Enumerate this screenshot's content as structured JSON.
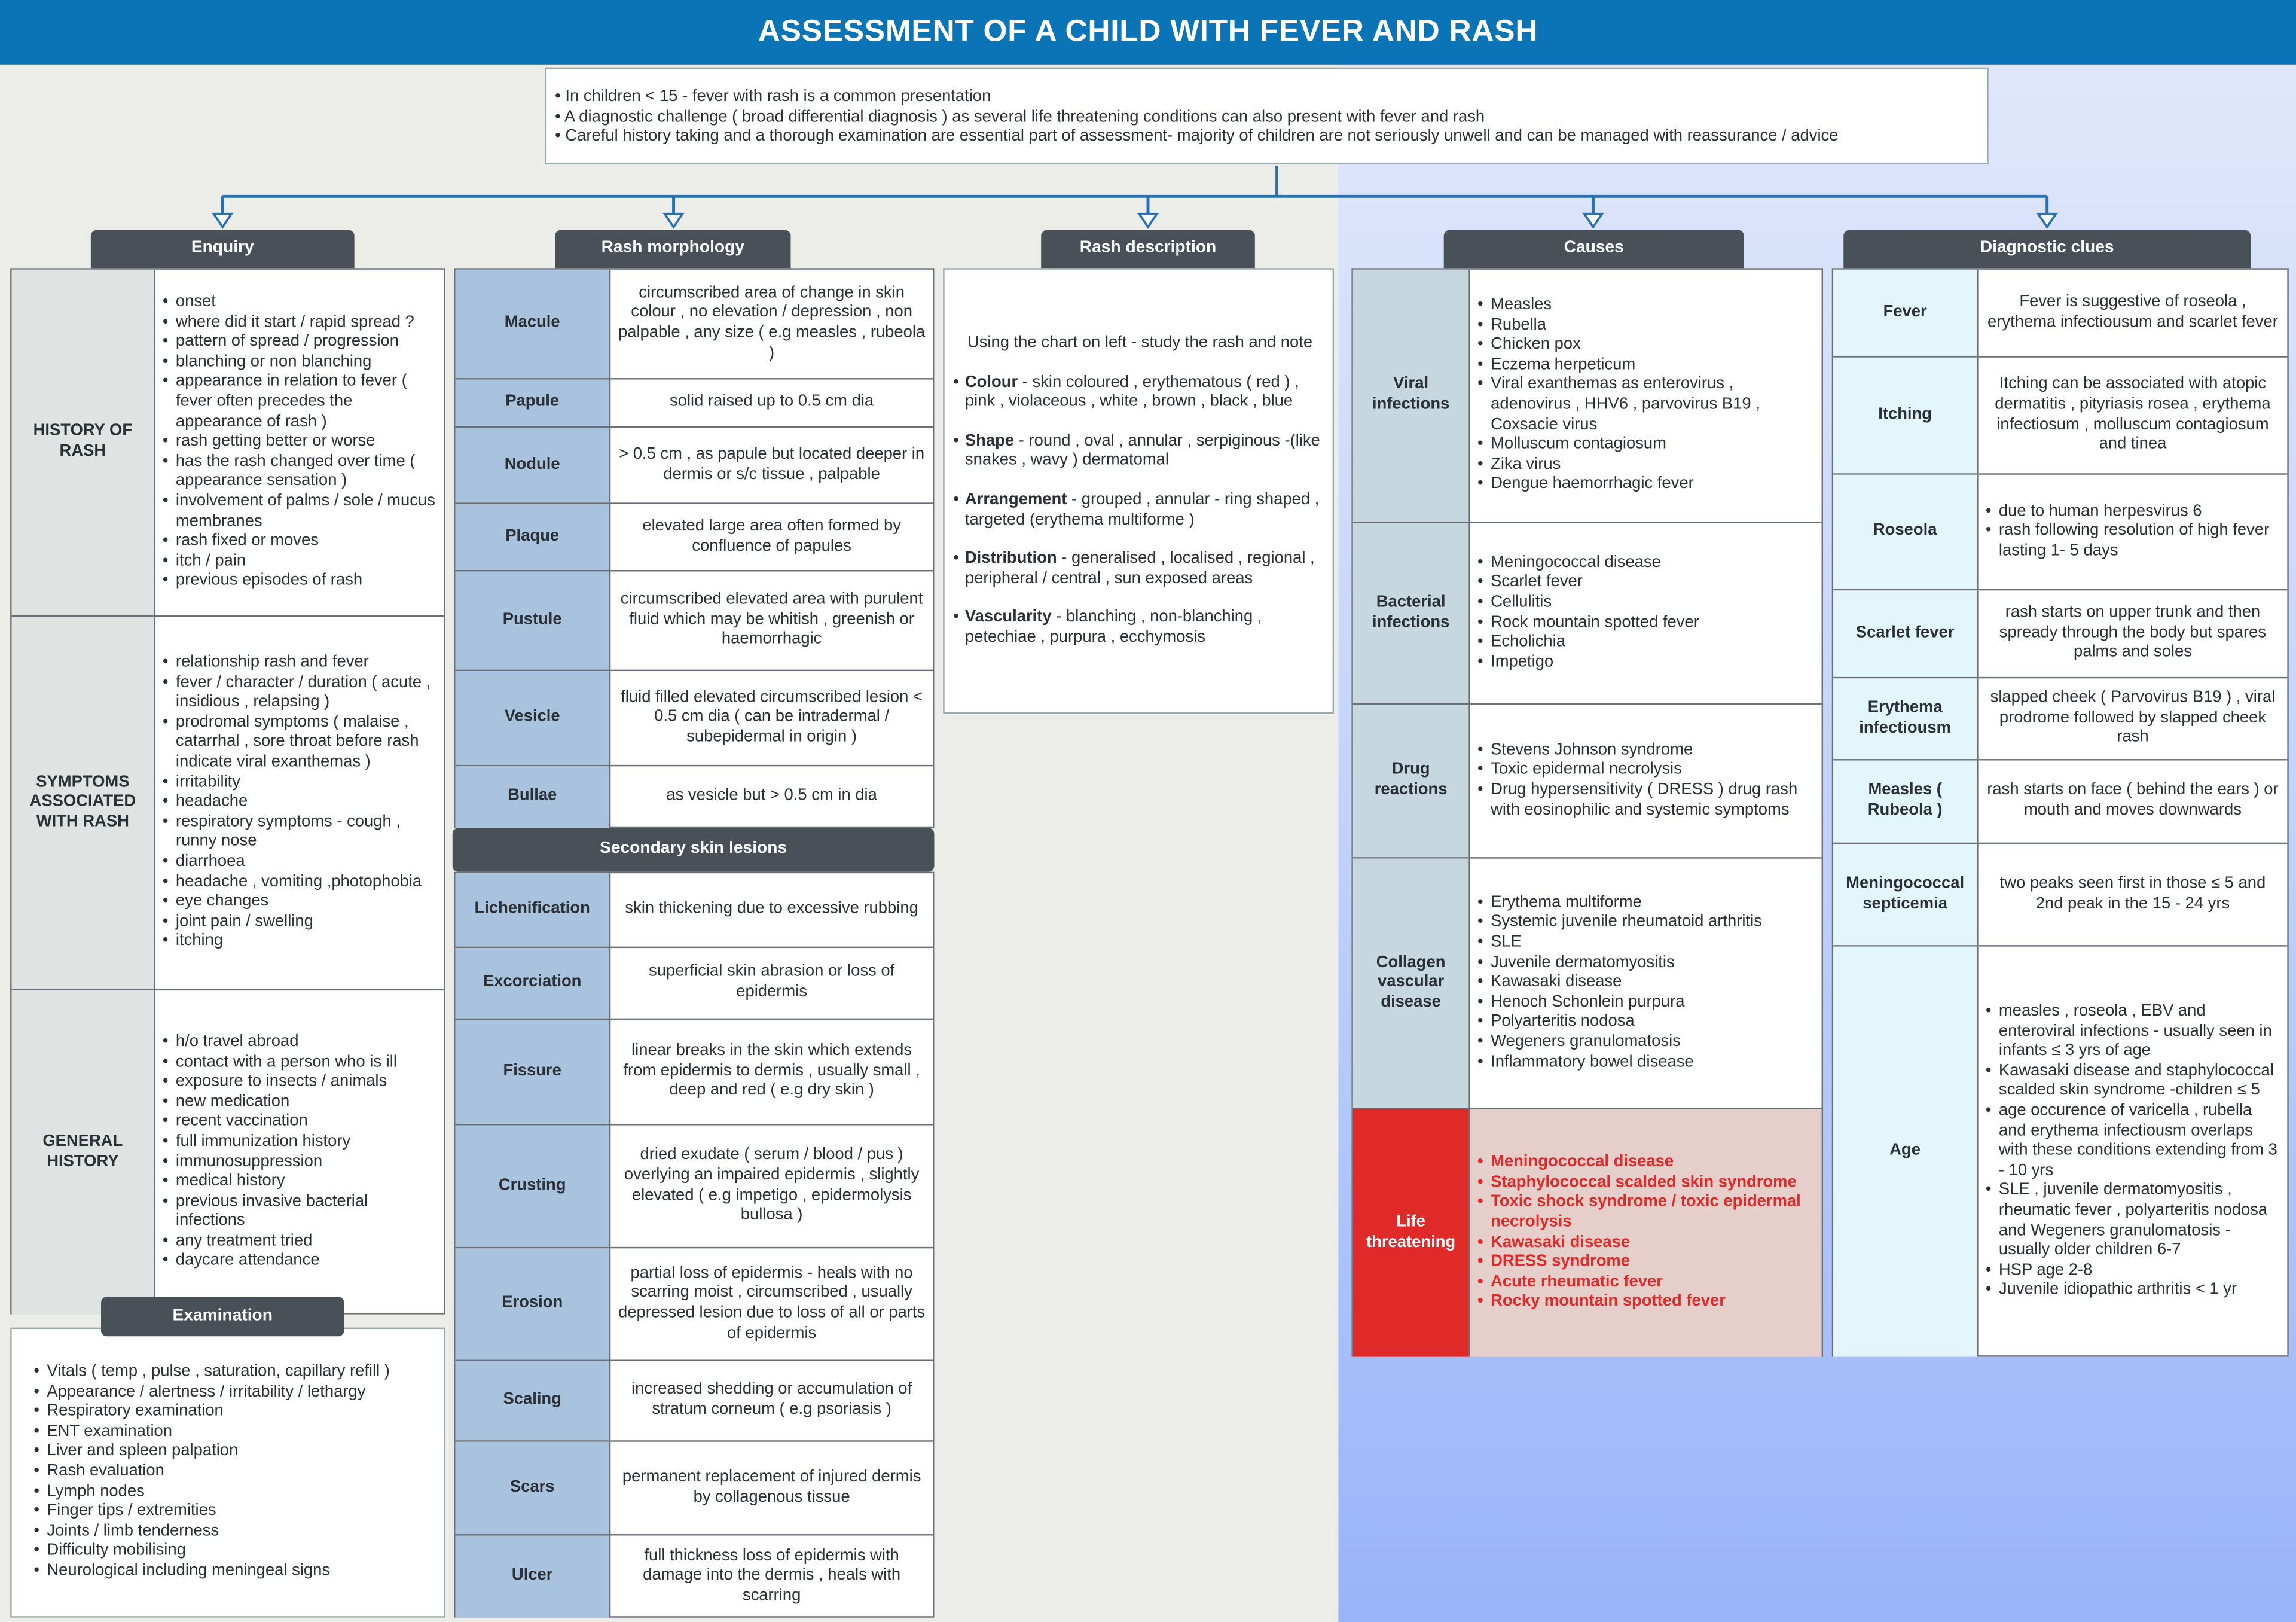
{
  "title": "ASSESSMENT OF A CHILD WITH FEVER AND RASH",
  "colors": {
    "title_bar": "#0a74b6",
    "header": "#4a5058",
    "life_threatening": "#e02a2a",
    "connector": "#2a6fb0"
  },
  "intro": [
    "In children < 15 - fever with rash is a common presentation",
    "A diagnostic challenge ( broad differential diagnosis ) as several life threatening conditions can also present with fever and rash",
    "Careful history taking and a thorough examination are essential part of assessment- majority of children are not seriously unwell and can be managed with reassurance / advice"
  ],
  "enquiry": {
    "header": "Enquiry",
    "rows": [
      {
        "label": "HISTORY OF RASH",
        "items": [
          "onset",
          "where did it start  / rapid spread ?",
          "pattern of spread / progression",
          "blanching or non blanching",
          "appearance in relation to fever ( fever often precedes the appearance of rash )",
          "rash getting better or worse",
          "has the rash changed over time ( appearance sensation )",
          "involvement of palms / sole / mucus membranes",
          "rash fixed or moves",
          "itch / pain",
          "previous episodes of rash"
        ]
      },
      {
        "label": "SYMPTOMS ASSOCIATED WITH RASH",
        "items": [
          "relationship rash and fever",
          "fever / character / duration ( acute , insidious , relapsing )",
          "prodromal symptoms ( malaise , catarrhal , sore throat before rash indicate viral exanthemas )",
          "irritability",
          "headache",
          "respiratory symptoms - cough , runny nose",
          "diarrhoea",
          "headache , vomiting ,photophobia",
          "eye changes",
          "joint pain / swelling",
          "itching"
        ]
      },
      {
        "label": "GENERAL HISTORY",
        "items": [
          "h/o travel abroad",
          "contact with a person who is ill",
          "exposure to insects / animals",
          "new medication",
          "recent vaccination",
          "full immunization history",
          "immunosuppression",
          "medical history",
          "previous invasive bacterial infections",
          "any treatment tried",
          "daycare attendance"
        ]
      }
    ]
  },
  "examination": {
    "header": "Examination",
    "items": [
      "Vitals ( temp , pulse , saturation, capillary refill )",
      "Appearance / alertness / irritability / lethargy",
      "Respiratory examination",
      "ENT examination",
      "Liver and spleen palpation",
      "Rash evaluation",
      "Lymph nodes",
      "Finger tips / extremities",
      "Joints / limb tenderness",
      "Difficulty mobilising",
      "Neurological including meningeal signs"
    ]
  },
  "rash_morphology": {
    "header": "Rash morphology",
    "rows": [
      {
        "label": "Macule",
        "text": "circumscribed area of change in skin colour , no elevation / depression , non palpable , any size ( e.g measles , rubeola )"
      },
      {
        "label": "Papule",
        "text": "solid raised up to 0.5 cm dia"
      },
      {
        "label": "Nodule",
        "text": "> 0.5 cm , as papule but located deeper in dermis or s/c tissue , palpable"
      },
      {
        "label": "Plaque",
        "text": "elevated large area often formed by confluence of papules"
      },
      {
        "label": "Pustule",
        "text": "circumscribed elevated area with purulent fluid which may be whitish , greenish or haemorrhagic"
      },
      {
        "label": "Vesicle",
        "text": "fluid filled elevated circumscribed lesion < 0.5 cm dia ( can be intradermal / subepidermal in origin )"
      },
      {
        "label": "Bullae",
        "text": "as vesicle but > 0.5 cm in dia"
      }
    ]
  },
  "secondary_lesions": {
    "header": "Secondary skin lesions",
    "rows": [
      {
        "label": "Lichenification",
        "text": "skin thickening due to excessive rubbing"
      },
      {
        "label": "Excorciation",
        "text": "superficial skin abrasion or loss of epidermis"
      },
      {
        "label": "Fissure",
        "text": "linear breaks in the skin which extends from epidermis to dermis , usually small , deep and red ( e.g dry skin )"
      },
      {
        "label": "Crusting",
        "text": "dried exudate ( serum / blood / pus ) overlying an impaired epidermis , slightly elevated ( e.g impetigo , epidermolysis bullosa )"
      },
      {
        "label": "Erosion",
        "text": "partial loss of epidermis  - heals with no scarring moist , circumscribed , usually depressed lesion due to loss of all or parts of epidermis"
      },
      {
        "label": "Scaling",
        "text": "increased shedding or accumulation of stratum corneum ( e.g psoriasis )"
      },
      {
        "label": "Scars",
        "text": "permanent replacement of injured dermis by collagenous tissue"
      },
      {
        "label": "Ulcer",
        "text": "full thickness loss of epidermis with damage into the dermis , heals with scarring"
      }
    ]
  },
  "rash_description": {
    "header": "Rash description",
    "intro": "Using the chart on left - study the rash and note",
    "items": [
      {
        "term": "Colour",
        "text": " - skin coloured , erythematous ( red ) , pink , violaceous , white , brown , black  , blue"
      },
      {
        "term": "Shape",
        "text": " - round , oval , annular , serpiginous -(like snakes , wavy ) dermatomal"
      },
      {
        "term": "Arrangement",
        "text": " - grouped , annular - ring shaped , targeted (erythema multiforme )"
      },
      {
        "term": "Distribution",
        "text": " - generalised , localised , regional , peripheral / central , sun exposed areas"
      },
      {
        "term": "Vascularity",
        "text": " - blanching , non-blanching , petechiae , purpura , ecchymosis"
      }
    ]
  },
  "causes": {
    "header": "Causes",
    "rows": [
      {
        "label": "Viral infections",
        "items": [
          "Measles",
          "Rubella",
          "Chicken pox",
          "Eczema herpeticum",
          "Viral exanthemas as enterovirus , adenovirus , HHV6 , parvovirus B19 , Coxsacie virus",
          "Molluscum contagiosum",
          "Zika virus",
          "Dengue haemorrhagic fever"
        ]
      },
      {
        "label": "Bacterial infections",
        "items": [
          "Meningococcal disease",
          "Scarlet fever",
          "Cellulitis",
          "Rock mountain spotted fever",
          "Echolichia",
          "Impetigo"
        ]
      },
      {
        "label": "Drug reactions",
        "items": [
          "Stevens Johnson syndrome",
          "Toxic epidermal  necrolysis",
          "Drug hypersensitivity ( DRESS ) drug rash with eosinophilic and systemic symptoms"
        ]
      },
      {
        "label": "Collagen vascular disease",
        "items": [
          "Erythema multiforme",
          "Systemic juvenile rheumatoid arthritis",
          "SLE",
          "Juvenile dermatomyositis",
          "Kawasaki disease",
          "Henoch Schonlein purpura",
          "Polyarteritis nodosa",
          "Wegeners granulomatosis",
          "Inflammatory bowel disease"
        ]
      },
      {
        "label": "Life threatening",
        "life": true,
        "items": [
          "Meningococcal disease",
          "Staphylococcal scalded skin syndrome",
          "Toxic shock syndrome / toxic epidermal necrolysis",
          "Kawasaki disease",
          "DRESS syndrome",
          "Acute rheumatic fever",
          "Rocky mountain spotted fever"
        ]
      }
    ]
  },
  "diagnostic_clues": {
    "header": "Diagnostic clues",
    "rows": [
      {
        "label": "Fever",
        "text": "Fever is suggestive of roseola , erythema infectiousum and scarlet fever"
      },
      {
        "label": "Itching",
        "text": "Itching can be associated with atopic dermatitis , pityriasis rosea , erythema infectiosum , molluscum contagiosum and tinea"
      },
      {
        "label": "Roseola",
        "items": [
          "due to human herpesvirus 6",
          "rash following resolution of high fever lasting 1- 5 days"
        ]
      },
      {
        "label": "Scarlet fever",
        "text": "rash starts on upper trunk and then spready through the body but spares palms and soles"
      },
      {
        "label": "Erythema infectiousm",
        "text": "slapped cheek ( Parvovirus B19 ) , viral prodrome followed by slapped cheek rash"
      },
      {
        "label": "Measles ( Rubeola )",
        "text": "rash starts on face ( behind the ears ) or mouth and moves downwards"
      },
      {
        "label": "Meningococcal septicemia",
        "text": "two peaks seen first in those ≤ 5 and 2nd peak in the 15 - 24 yrs"
      },
      {
        "label": "Age",
        "items": [
          "measles , roseola , EBV and enteroviral infections - usually seen in infants  ≤ 3 yrs of age",
          "Kawasaki disease and staphylococcal scalded skin syndrome -children ≤  5",
          "age occurence of varicella , rubella and erythema infectiousm overlaps with these conditions extending from 3 - 10 yrs",
          "SLE , juvenile dermatomyositis , rheumatic fever , polyarteritis nodosa and Wegeners granulomatosis -usually older children 6-7",
          "HSP age 2-8",
          "Juvenile idiopathic arthritis < 1 yr"
        ]
      }
    ]
  }
}
